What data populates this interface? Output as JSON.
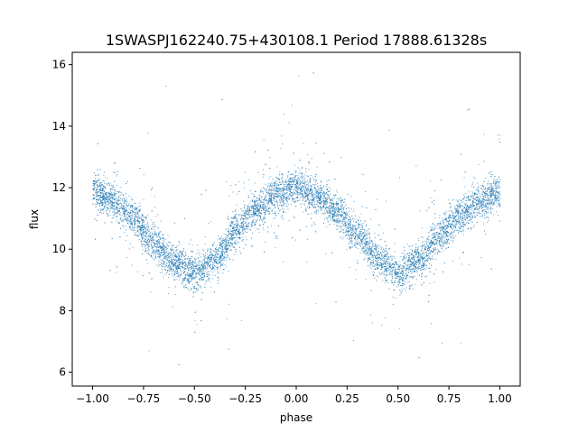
{
  "chart_data": {
    "type": "scatter",
    "title": "1SWASPJ162240.75+430108.1 Period 17888.61328s",
    "xlabel": "phase",
    "ylabel": "flux",
    "xlim": [
      -1.1,
      1.1
    ],
    "ylim": [
      5.55,
      16.4
    ],
    "xticks": [
      -1.0,
      -0.75,
      -0.5,
      -0.25,
      0.0,
      0.25,
      0.5,
      0.75,
      1.0
    ],
    "xtick_labels": [
      "−1.00",
      "−0.75",
      "−0.50",
      "−0.25",
      "0.00",
      "0.25",
      "0.50",
      "0.75",
      "1.00"
    ],
    "yticks": [
      6,
      8,
      10,
      12,
      14,
      16
    ],
    "ytick_labels": [
      "6",
      "8",
      "10",
      "12",
      "14",
      "16"
    ],
    "grid": false,
    "marker_color": "#1f77b4",
    "series": [
      {
        "description_curve": "phase-folded light curve",
        "x": [
          -1.0,
          -0.9,
          -0.8,
          -0.7,
          -0.6,
          -0.5,
          -0.4,
          -0.3,
          -0.2,
          -0.1,
          0.0,
          0.1,
          0.2,
          0.3,
          0.4,
          0.5,
          0.6,
          0.7,
          0.8,
          0.9,
          1.0
        ],
        "y": [
          11.9,
          11.6,
          11.0,
          10.2,
          9.6,
          9.2,
          9.7,
          10.6,
          11.3,
          11.8,
          12.0,
          11.7,
          11.2,
          10.5,
          9.7,
          9.2,
          9.6,
          10.4,
          11.1,
          11.6,
          11.9
        ]
      }
    ]
  }
}
